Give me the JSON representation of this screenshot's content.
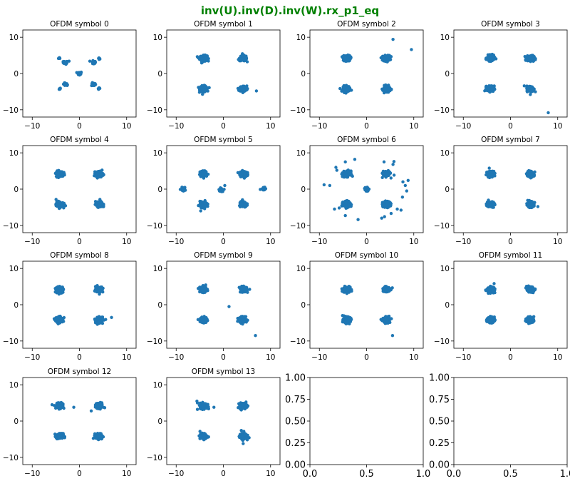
{
  "figure": {
    "title": "inv(U).inv(D).inv(W).rx_p1_eq",
    "title_color": "#008000",
    "marker_color": "#1f77b4"
  },
  "chart_data": {
    "type": "scatter",
    "layout": "4x4 grid of subplots",
    "axis_range": [
      -12,
      12
    ],
    "ticks": [
      -10,
      0,
      10
    ],
    "empty_axis_ticks": [
      "0.00",
      "0.25",
      "0.50",
      "0.75",
      "1.00"
    ],
    "empty_axis_tick_labels_x": [
      "0.0",
      "0.5",
      "1.0"
    ],
    "panels": [
      {
        "title": "OFDM symbol 0",
        "clusters": [
          [
            -4.2,
            4.2,
            1
          ],
          [
            -4.2,
            -4.2,
            1
          ],
          [
            4.2,
            4.2,
            1
          ],
          [
            4.2,
            -4.2,
            1
          ],
          [
            -3,
            3,
            2
          ],
          [
            3,
            3,
            2
          ],
          [
            -3,
            -3,
            2
          ],
          [
            3,
            -3,
            2
          ],
          [
            0,
            0,
            3
          ]
        ],
        "outliers": [
          [
            -2.2,
            3.4
          ],
          [
            2.2,
            3.4
          ],
          [
            -2.6,
            -3.3
          ],
          [
            2.7,
            -3.2
          ]
        ]
      },
      {
        "title": "OFDM symbol 1",
        "clusters": [
          [
            -4.2,
            4.2,
            5
          ],
          [
            4.2,
            4.2,
            5
          ],
          [
            -4.2,
            -4.2,
            5
          ],
          [
            4.2,
            -4.2,
            5
          ]
        ],
        "outliers": [
          [
            7,
            -4.8
          ]
        ]
      },
      {
        "title": "OFDM symbol 2",
        "clusters": [
          [
            -4.2,
            4.2,
            5
          ],
          [
            4.2,
            4.2,
            5
          ],
          [
            -4.2,
            -4.2,
            5
          ],
          [
            4.2,
            -4.2,
            5
          ]
        ],
        "outliers": [
          [
            5.6,
            9.4
          ],
          [
            9.5,
            6.6
          ]
        ]
      },
      {
        "title": "OFDM symbol 3",
        "clusters": [
          [
            -4.2,
            4.2,
            5
          ],
          [
            4.2,
            4.2,
            5
          ],
          [
            -4.2,
            -4.2,
            5
          ],
          [
            4.2,
            -4.2,
            5
          ]
        ],
        "outliers": [
          [
            8,
            -10.8
          ],
          [
            4.2,
            -5.8
          ]
        ]
      },
      {
        "title": "OFDM symbol 4",
        "clusters": [
          [
            -4.2,
            4.2,
            5
          ],
          [
            4.2,
            4.2,
            5
          ],
          [
            -4.2,
            -4.2,
            5
          ],
          [
            4.2,
            -4.2,
            5
          ]
        ],
        "outliers": []
      },
      {
        "title": "OFDM symbol 5",
        "clusters": [
          [
            -4.2,
            4.2,
            5
          ],
          [
            4.2,
            4.2,
            5
          ],
          [
            -4.2,
            -4.2,
            5
          ],
          [
            4.2,
            -4.2,
            5
          ],
          [
            -8.5,
            0,
            4
          ],
          [
            8.5,
            0.2,
            4
          ],
          [
            -0.5,
            -0.2,
            2
          ]
        ],
        "outliers": [
          [
            0.3,
            1
          ],
          [
            -4.8,
            -6
          ],
          [
            -0.6,
            -0.6
          ]
        ]
      },
      {
        "title": "OFDM symbol 6",
        "clusters": [
          [
            -4.2,
            4.2,
            5
          ],
          [
            4.2,
            4.2,
            5
          ],
          [
            -4.2,
            -4.2,
            5
          ],
          [
            4.2,
            -4.2,
            5
          ],
          [
            0,
            0,
            3
          ]
        ],
        "outliers": [
          [
            -6.5,
            6
          ],
          [
            -6.3,
            5.2
          ],
          [
            -4.5,
            7.5
          ],
          [
            -2.5,
            8.2
          ],
          [
            3.7,
            7.5
          ],
          [
            5.8,
            7.6
          ],
          [
            5.6,
            6.8
          ],
          [
            7.7,
            2
          ],
          [
            8.2,
            1
          ],
          [
            8.8,
            2.4
          ],
          [
            -9,
            1.2
          ],
          [
            -7.8,
            1
          ],
          [
            -6.8,
            -5.5
          ],
          [
            -5.8,
            -5.2
          ],
          [
            -4.5,
            -7.3
          ],
          [
            -1.8,
            -8.4
          ],
          [
            3.2,
            -8
          ],
          [
            3.8,
            -7.6
          ],
          [
            5.2,
            -6.7
          ],
          [
            6.5,
            -5.5
          ],
          [
            7.3,
            -5.8
          ],
          [
            7.6,
            -2.2
          ],
          [
            8.5,
            -0.5
          ]
        ]
      },
      {
        "title": "OFDM symbol 7",
        "clusters": [
          [
            -4.2,
            4.2,
            5
          ],
          [
            4.2,
            4.2,
            5
          ],
          [
            -4.2,
            -4.2,
            5
          ],
          [
            4.2,
            -4.2,
            5
          ]
        ],
        "outliers": [
          [
            -4.5,
            5.8
          ],
          [
            5.8,
            -4.8
          ]
        ]
      },
      {
        "title": "OFDM symbol 8",
        "clusters": [
          [
            -4.2,
            4.2,
            5
          ],
          [
            4.2,
            4.2,
            5
          ],
          [
            -4.2,
            -4.2,
            5
          ],
          [
            4.2,
            -4.2,
            5
          ]
        ],
        "outliers": [
          [
            6.8,
            -3.5
          ],
          [
            3.8,
            -5.4
          ]
        ]
      },
      {
        "title": "OFDM symbol 9",
        "clusters": [
          [
            -4.2,
            4.2,
            5
          ],
          [
            4.2,
            4.2,
            5
          ],
          [
            -4.2,
            -4.2,
            5
          ],
          [
            4.2,
            -4.2,
            5
          ]
        ],
        "outliers": [
          [
            1.2,
            -0.5
          ],
          [
            6.8,
            -8.5
          ],
          [
            3.5,
            -4.8
          ]
        ]
      },
      {
        "title": "OFDM symbol 10",
        "clusters": [
          [
            -4.2,
            4.2,
            5
          ],
          [
            4.2,
            4.2,
            5
          ],
          [
            -4.2,
            -4.2,
            5
          ],
          [
            4.2,
            -4.2,
            5
          ]
        ],
        "outliers": [
          [
            5.5,
            -8.5
          ]
        ]
      },
      {
        "title": "OFDM symbol 11",
        "clusters": [
          [
            -4.2,
            4.2,
            5
          ],
          [
            4.2,
            4.2,
            5
          ],
          [
            -4.2,
            -4.2,
            5
          ],
          [
            4.2,
            -4.2,
            5
          ]
        ],
        "outliers": []
      },
      {
        "title": "OFDM symbol 12",
        "clusters": [
          [
            -4.2,
            4.2,
            5
          ],
          [
            4.2,
            4.2,
            5
          ],
          [
            -4.2,
            -4.2,
            5
          ],
          [
            4.2,
            -4.2,
            5
          ]
        ],
        "outliers": [
          [
            -1.2,
            3.8
          ],
          [
            2.5,
            2.8
          ],
          [
            -5.8,
            4.5
          ],
          [
            -3.2,
            -4.5
          ]
        ]
      },
      {
        "title": "OFDM symbol 13",
        "clusters": [
          [
            -4.2,
            4.2,
            6
          ],
          [
            4.2,
            4.2,
            5
          ],
          [
            -4.2,
            -4.2,
            5
          ],
          [
            4.2,
            -4.2,
            5
          ]
        ],
        "outliers": [
          [
            -2,
            3.8
          ],
          [
            -5.5,
            3.2
          ],
          [
            3.8,
            -2.6
          ],
          [
            4.2,
            -6.2
          ],
          [
            -5.6,
            5.5
          ]
        ]
      },
      {
        "title": "",
        "empty": true
      },
      {
        "title": "",
        "empty": true
      }
    ]
  }
}
